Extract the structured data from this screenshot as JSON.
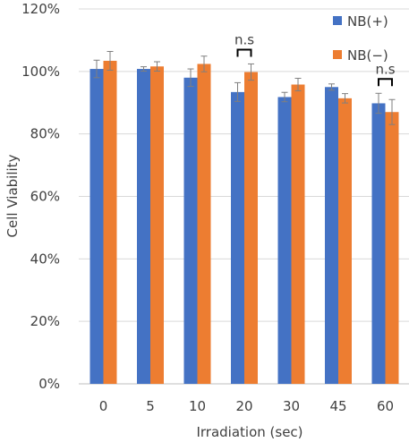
{
  "chart_data": {
    "type": "bar",
    "title": "",
    "xlabel": "Irradiation (sec)",
    "ylabel": "Cell Viability",
    "ylim": [
      0,
      120
    ],
    "y_ticks": [
      "0%",
      "20%",
      "40%",
      "60%",
      "80%",
      "100%",
      "120%"
    ],
    "y_tick_values": [
      0,
      20,
      40,
      60,
      80,
      100,
      120
    ],
    "grid": "horizontal",
    "legend_position": "top-right",
    "categories": [
      "0",
      "5",
      "10",
      "20",
      "30",
      "45",
      "60"
    ],
    "series": [
      {
        "name": "NB(+)",
        "color": "#4472C4",
        "values": [
          100.8,
          100.8,
          98.0,
          93.4,
          91.8,
          95.0,
          89.8
        ],
        "errors": [
          2.8,
          0.7,
          2.8,
          3.0,
          1.5,
          1.0,
          3.2
        ]
      },
      {
        "name": "NB(−)",
        "color": "#ED7D31",
        "values": [
          103.4,
          101.6,
          102.4,
          99.8,
          95.8,
          91.4,
          87.0
        ],
        "errors": [
          3.0,
          1.5,
          2.5,
          2.6,
          2.0,
          1.5,
          4.0
        ]
      }
    ],
    "annotations": [
      {
        "text": "n.s",
        "category": "20"
      },
      {
        "text": "n.s",
        "category": "60"
      }
    ]
  }
}
